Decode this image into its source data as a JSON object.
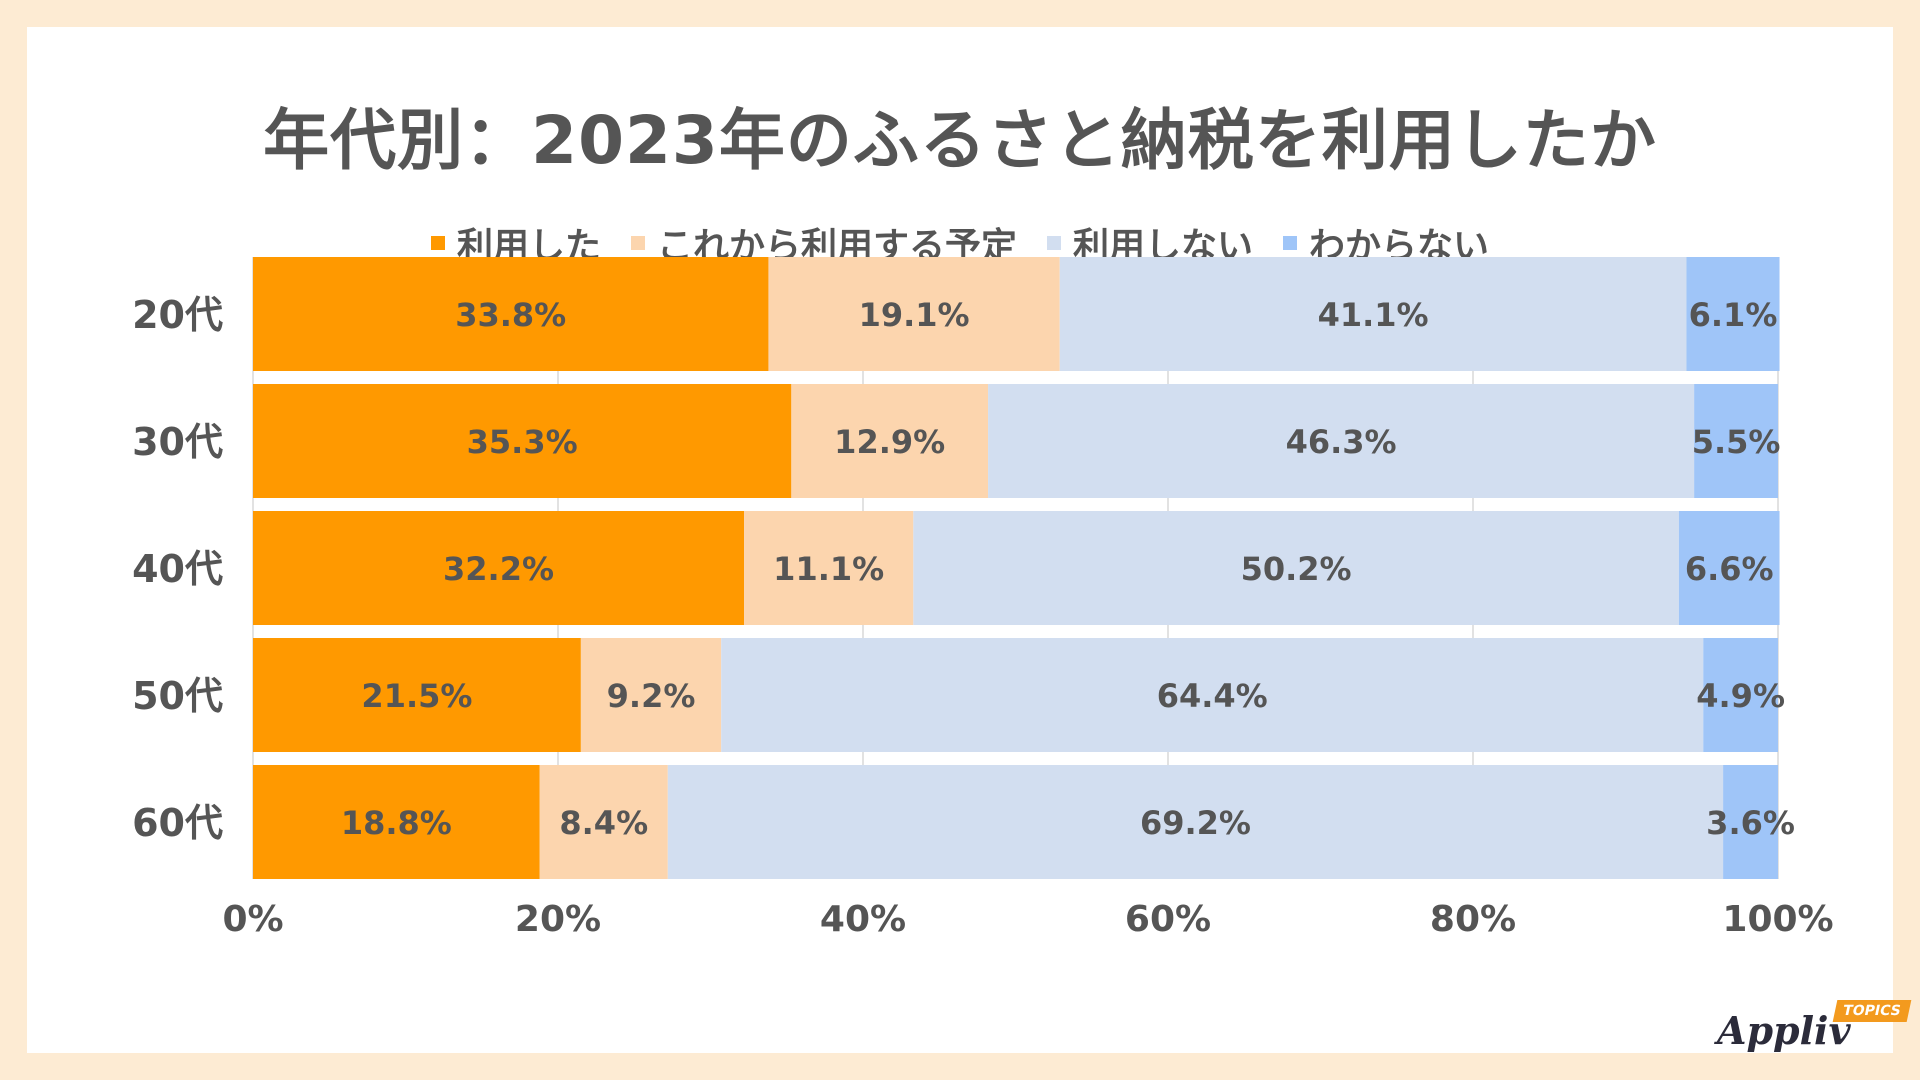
{
  "title": "年代別：2023年のふるさと納税を利用したか",
  "colors": {
    "used": "#FF9900",
    "planned": "#FCD5AE",
    "not_used": "#D2DEF0",
    "unknown": "#9FC5F8",
    "text": "#555555",
    "background": "#FDEBD3"
  },
  "logo": {
    "word": "Appliv",
    "badge": "TOPICS"
  },
  "chart_data": {
    "type": "bar",
    "orientation": "horizontal",
    "stacked": true,
    "title": "年代別：2023年のふるさと納税を利用したか",
    "categories": [
      "20代",
      "30代",
      "40代",
      "50代",
      "60代"
    ],
    "series": [
      {
        "name": "利用した",
        "color": "#FF9900",
        "values": [
          33.8,
          35.3,
          32.2,
          21.5,
          18.8
        ],
        "labels": [
          "33.8%",
          "35.3%",
          "32.2%",
          "21.5%",
          "18.8%"
        ]
      },
      {
        "name": "これから利用する予定",
        "color": "#FCD5AE",
        "values": [
          19.1,
          12.9,
          11.1,
          9.2,
          8.4
        ],
        "labels": [
          "19.1%",
          "12.9%",
          "11.1%",
          "9.2%",
          "8.4%"
        ]
      },
      {
        "name": "利用しない",
        "color": "#D2DEF0",
        "values": [
          41.1,
          46.3,
          50.2,
          64.4,
          69.2
        ],
        "labels": [
          "41.1%",
          "46.3%",
          "50.2%",
          "64.4%",
          "69.2%"
        ]
      },
      {
        "name": "わからない",
        "color": "#9FC5F8",
        "values": [
          6.1,
          5.5,
          6.6,
          4.9,
          3.6
        ],
        "labels": [
          "6.1%",
          "5.5%",
          "6.6%",
          "4.9%",
          "3.6%"
        ]
      }
    ],
    "x_ticks": [
      "0%",
      "20%",
      "40%",
      "60%",
      "80%",
      "100%"
    ],
    "xlim": [
      0,
      100
    ],
    "grid": true,
    "legend_position": "top"
  }
}
